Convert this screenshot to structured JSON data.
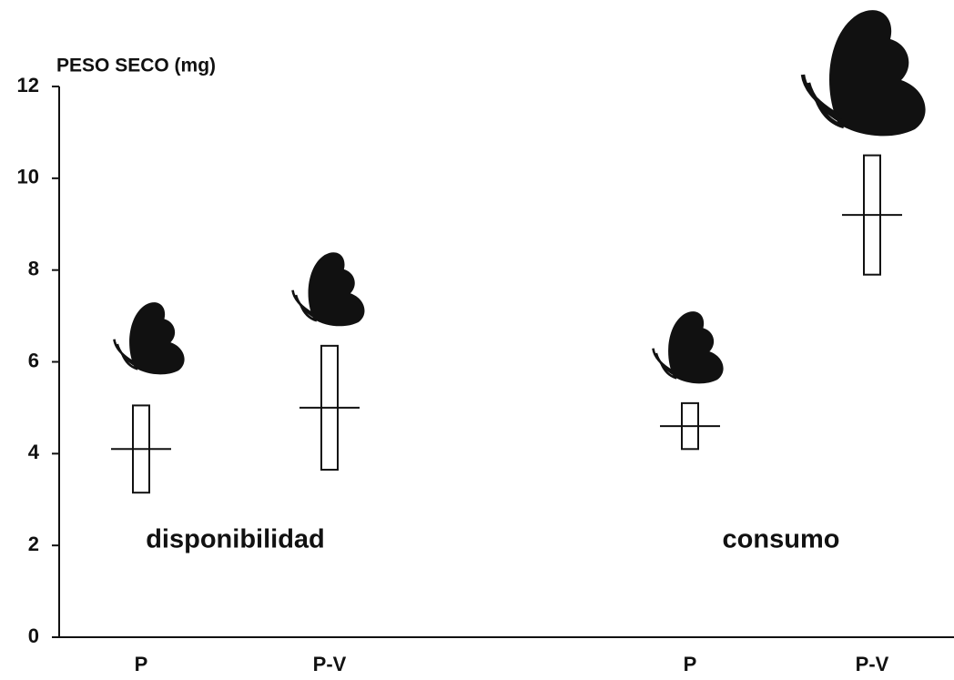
{
  "chart_data": {
    "type": "range-mean",
    "y_label": "PESO SECO (mg)",
    "categories": [
      "P",
      "P-V",
      "P",
      "P-V"
    ],
    "groups": [
      {
        "label": "disponibilidad",
        "members": [
          0,
          1
        ]
      },
      {
        "label": "consumo",
        "members": [
          2,
          3
        ]
      }
    ],
    "values": [
      4.1,
      5.0,
      4.6,
      9.2
    ],
    "low": [
      3.15,
      3.65,
      4.1,
      7.9
    ],
    "high": [
      5.05,
      6.35,
      5.1,
      10.5
    ],
    "color": "#111111",
    "ylim": [
      0,
      12
    ],
    "yticks": [
      0,
      2,
      4,
      6,
      8,
      10,
      12
    ]
  }
}
